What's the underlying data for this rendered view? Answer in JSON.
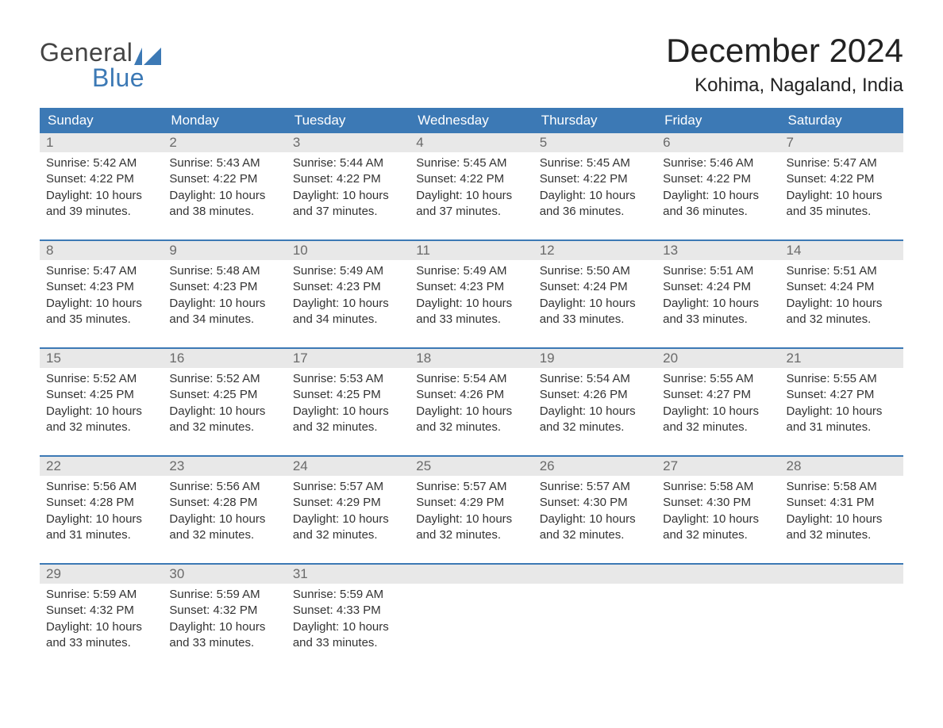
{
  "brand": {
    "word1": "General",
    "word2": "Blue",
    "text_color_top": "#444444",
    "text_color_bottom": "#3c79b5",
    "flag_color": "#3c79b5"
  },
  "title": {
    "month_year": "December 2024",
    "location": "Kohima, Nagaland, India"
  },
  "colors": {
    "header_bg": "#3c79b5",
    "header_text": "#ffffff",
    "daynum_bg": "#e8e8e8",
    "daynum_text": "#6a6a6a",
    "body_text": "#333333",
    "week_border": "#3c79b5",
    "page_bg": "#ffffff"
  },
  "typography": {
    "title_fontsize": 42,
    "location_fontsize": 24,
    "dayheader_fontsize": 17,
    "daynum_fontsize": 17,
    "body_fontsize": 15,
    "font_family": "Arial"
  },
  "layout": {
    "columns": 7,
    "column_labels": [
      "Sunday",
      "Monday",
      "Tuesday",
      "Wednesday",
      "Thursday",
      "Friday",
      "Saturday"
    ]
  },
  "labels": {
    "sunrise_prefix": "Sunrise: ",
    "sunset_prefix": "Sunset: ",
    "daylight_prefix": "Daylight: "
  },
  "weeks": [
    [
      {
        "day": "1",
        "sunrise": "5:42 AM",
        "sunset": "4:22 PM",
        "daylight": "10 hours and 39 minutes."
      },
      {
        "day": "2",
        "sunrise": "5:43 AM",
        "sunset": "4:22 PM",
        "daylight": "10 hours and 38 minutes."
      },
      {
        "day": "3",
        "sunrise": "5:44 AM",
        "sunset": "4:22 PM",
        "daylight": "10 hours and 37 minutes."
      },
      {
        "day": "4",
        "sunrise": "5:45 AM",
        "sunset": "4:22 PM",
        "daylight": "10 hours and 37 minutes."
      },
      {
        "day": "5",
        "sunrise": "5:45 AM",
        "sunset": "4:22 PM",
        "daylight": "10 hours and 36 minutes."
      },
      {
        "day": "6",
        "sunrise": "5:46 AM",
        "sunset": "4:22 PM",
        "daylight": "10 hours and 36 minutes."
      },
      {
        "day": "7",
        "sunrise": "5:47 AM",
        "sunset": "4:22 PM",
        "daylight": "10 hours and 35 minutes."
      }
    ],
    [
      {
        "day": "8",
        "sunrise": "5:47 AM",
        "sunset": "4:23 PM",
        "daylight": "10 hours and 35 minutes."
      },
      {
        "day": "9",
        "sunrise": "5:48 AM",
        "sunset": "4:23 PM",
        "daylight": "10 hours and 34 minutes."
      },
      {
        "day": "10",
        "sunrise": "5:49 AM",
        "sunset": "4:23 PM",
        "daylight": "10 hours and 34 minutes."
      },
      {
        "day": "11",
        "sunrise": "5:49 AM",
        "sunset": "4:23 PM",
        "daylight": "10 hours and 33 minutes."
      },
      {
        "day": "12",
        "sunrise": "5:50 AM",
        "sunset": "4:24 PM",
        "daylight": "10 hours and 33 minutes."
      },
      {
        "day": "13",
        "sunrise": "5:51 AM",
        "sunset": "4:24 PM",
        "daylight": "10 hours and 33 minutes."
      },
      {
        "day": "14",
        "sunrise": "5:51 AM",
        "sunset": "4:24 PM",
        "daylight": "10 hours and 32 minutes."
      }
    ],
    [
      {
        "day": "15",
        "sunrise": "5:52 AM",
        "sunset": "4:25 PM",
        "daylight": "10 hours and 32 minutes."
      },
      {
        "day": "16",
        "sunrise": "5:52 AM",
        "sunset": "4:25 PM",
        "daylight": "10 hours and 32 minutes."
      },
      {
        "day": "17",
        "sunrise": "5:53 AM",
        "sunset": "4:25 PM",
        "daylight": "10 hours and 32 minutes."
      },
      {
        "day": "18",
        "sunrise": "5:54 AM",
        "sunset": "4:26 PM",
        "daylight": "10 hours and 32 minutes."
      },
      {
        "day": "19",
        "sunrise": "5:54 AM",
        "sunset": "4:26 PM",
        "daylight": "10 hours and 32 minutes."
      },
      {
        "day": "20",
        "sunrise": "5:55 AM",
        "sunset": "4:27 PM",
        "daylight": "10 hours and 32 minutes."
      },
      {
        "day": "21",
        "sunrise": "5:55 AM",
        "sunset": "4:27 PM",
        "daylight": "10 hours and 31 minutes."
      }
    ],
    [
      {
        "day": "22",
        "sunrise": "5:56 AM",
        "sunset": "4:28 PM",
        "daylight": "10 hours and 31 minutes."
      },
      {
        "day": "23",
        "sunrise": "5:56 AM",
        "sunset": "4:28 PM",
        "daylight": "10 hours and 32 minutes."
      },
      {
        "day": "24",
        "sunrise": "5:57 AM",
        "sunset": "4:29 PM",
        "daylight": "10 hours and 32 minutes."
      },
      {
        "day": "25",
        "sunrise": "5:57 AM",
        "sunset": "4:29 PM",
        "daylight": "10 hours and 32 minutes."
      },
      {
        "day": "26",
        "sunrise": "5:57 AM",
        "sunset": "4:30 PM",
        "daylight": "10 hours and 32 minutes."
      },
      {
        "day": "27",
        "sunrise": "5:58 AM",
        "sunset": "4:30 PM",
        "daylight": "10 hours and 32 minutes."
      },
      {
        "day": "28",
        "sunrise": "5:58 AM",
        "sunset": "4:31 PM",
        "daylight": "10 hours and 32 minutes."
      }
    ],
    [
      {
        "day": "29",
        "sunrise": "5:59 AM",
        "sunset": "4:32 PM",
        "daylight": "10 hours and 33 minutes."
      },
      {
        "day": "30",
        "sunrise": "5:59 AM",
        "sunset": "4:32 PM",
        "daylight": "10 hours and 33 minutes."
      },
      {
        "day": "31",
        "sunrise": "5:59 AM",
        "sunset": "4:33 PM",
        "daylight": "10 hours and 33 minutes."
      },
      null,
      null,
      null,
      null
    ]
  ]
}
